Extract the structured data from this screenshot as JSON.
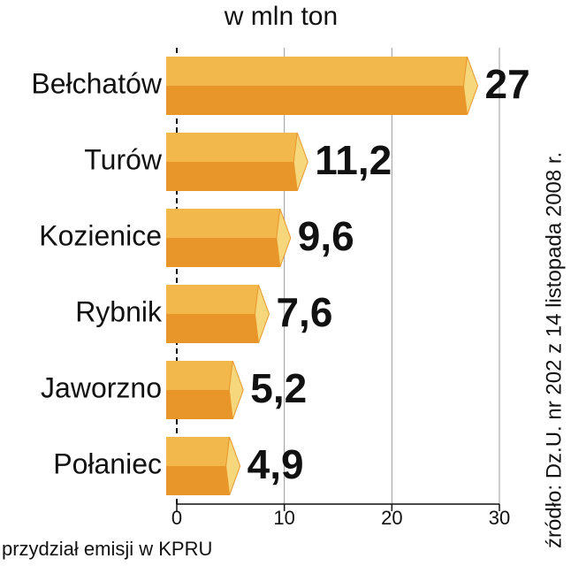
{
  "chart_data": {
    "type": "hbar",
    "title": "w mln ton",
    "categories": [
      "Bełchatów",
      "Turów",
      "Kozienice",
      "Rybnik",
      "Jaworzno",
      "Połaniec"
    ],
    "values": [
      27,
      11.2,
      9.6,
      7.6,
      5.2,
      4.9
    ],
    "value_labels": [
      "27",
      "11,2",
      "9,6",
      "7,6",
      "5,2",
      "4,9"
    ],
    "colors": {
      "top": "#f2b84b",
      "bottom": "#e8952a",
      "side": "#f7d77c"
    },
    "xlim": [
      0,
      30
    ],
    "xticks": [
      0,
      10,
      20,
      30
    ],
    "grid": true,
    "xlabel": "przydział emisji w KPRU",
    "source": "źródło: Dz.U. nr 202 z 14 listopada 2008 r."
  }
}
